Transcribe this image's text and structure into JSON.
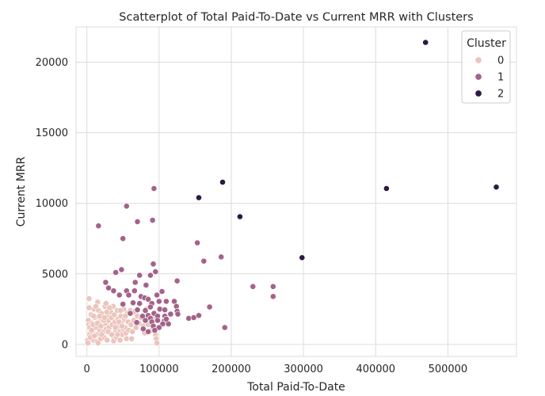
{
  "chart_data": {
    "type": "scatter",
    "title": "Scatterplot of Total Paid-To-Date vs Current MRR with Clusters",
    "xlabel": "Total Paid-To-Date",
    "ylabel": "Current MRR",
    "xlim": [
      -15000,
      595000
    ],
    "ylim": [
      -850,
      22500
    ],
    "xticks": [
      0,
      100000,
      200000,
      300000,
      400000,
      500000
    ],
    "xtick_labels": [
      "0",
      "100000",
      "200000",
      "300000",
      "400000",
      "500000"
    ],
    "yticks": [
      0,
      5000,
      10000,
      15000,
      20000
    ],
    "ytick_labels": [
      "0",
      "5000",
      "10000",
      "15000",
      "20000"
    ],
    "grid": true,
    "legend": {
      "title": "Cluster",
      "position": "top-right",
      "entries": [
        "0",
        "1",
        "2"
      ]
    },
    "colors": {
      "0": "#ecc4bc",
      "1": "#a4628a",
      "2": "#2c1a40"
    },
    "series": [
      {
        "name": "0",
        "points": [
          [
            2000,
            1700
          ],
          [
            3000,
            3250
          ],
          [
            2500,
            1400
          ],
          [
            1000,
            300
          ],
          [
            1500,
            100
          ],
          [
            3500,
            700
          ],
          [
            4000,
            1200
          ],
          [
            6000,
            2100
          ],
          [
            7000,
            1500
          ],
          [
            8000,
            800
          ],
          [
            9000,
            300
          ],
          [
            5000,
            500
          ],
          [
            10000,
            2500
          ],
          [
            11000,
            1900
          ],
          [
            12000,
            1200
          ],
          [
            13000,
            700
          ],
          [
            14000,
            200
          ],
          [
            15000,
            3000
          ],
          [
            16000,
            2400
          ],
          [
            17000,
            1600
          ],
          [
            18000,
            1000
          ],
          [
            19000,
            400
          ],
          [
            20000,
            2200
          ],
          [
            21000,
            1800
          ],
          [
            22000,
            1300
          ],
          [
            23000,
            900
          ],
          [
            24000,
            500
          ],
          [
            25000,
            2700
          ],
          [
            26000,
            1500
          ],
          [
            27000,
            1100
          ],
          [
            28000,
            300
          ],
          [
            29000,
            2000
          ],
          [
            30000,
            1700
          ],
          [
            31000,
            1200
          ],
          [
            32000,
            800
          ],
          [
            33000,
            2300
          ],
          [
            34000,
            1900
          ],
          [
            35000,
            1400
          ],
          [
            36000,
            600
          ],
          [
            37000,
            250
          ],
          [
            38000,
            2100
          ],
          [
            39000,
            1600
          ],
          [
            40000,
            1000
          ],
          [
            41000,
            500
          ],
          [
            42000,
            2400
          ],
          [
            43000,
            1800
          ],
          [
            44000,
            1300
          ],
          [
            45000,
            900
          ],
          [
            46000,
            300
          ],
          [
            47000,
            2000
          ],
          [
            48000,
            1500
          ],
          [
            49000,
            700
          ],
          [
            50000,
            1100
          ],
          [
            51000,
            2500
          ],
          [
            52000,
            1800
          ],
          [
            53000,
            1200
          ],
          [
            54000,
            800
          ],
          [
            55000,
            400
          ],
          [
            56000,
            2200
          ],
          [
            57000,
            1600
          ],
          [
            58000,
            1000
          ],
          [
            60000,
            2400
          ],
          [
            61000,
            1400
          ],
          [
            63000,
            900
          ],
          [
            65000,
            1700
          ],
          [
            66000,
            2300
          ],
          [
            68000,
            1200
          ],
          [
            70000,
            2000
          ],
          [
            72000,
            1500
          ],
          [
            8500,
            1400
          ],
          [
            9500,
            2000
          ],
          [
            12500,
            2700
          ],
          [
            14500,
            1500
          ],
          [
            17500,
            2000
          ],
          [
            19500,
            1300
          ],
          [
            23500,
            1700
          ],
          [
            27500,
            2300
          ],
          [
            29500,
            900
          ],
          [
            34500,
            700
          ],
          [
            36500,
            2700
          ],
          [
            39500,
            1200
          ],
          [
            44500,
            1600
          ],
          [
            46500,
            2400
          ],
          [
            53500,
            2000
          ],
          [
            62000,
            400
          ],
          [
            75000,
            1900
          ],
          [
            78000,
            1300
          ],
          [
            80000,
            800
          ],
          [
            82000,
            2500
          ],
          [
            85000,
            1400
          ],
          [
            90000,
            1000
          ],
          [
            92000,
            1900
          ],
          [
            95000,
            700
          ],
          [
            96000,
            400
          ],
          [
            97000,
            100
          ],
          [
            26500,
            2900
          ],
          [
            31500,
            2600
          ],
          [
            3000,
            2600
          ],
          [
            6500,
            1000
          ],
          [
            10500,
            600
          ],
          [
            15500,
            100
          ],
          [
            20500,
            700
          ],
          [
            24500,
            1900
          ],
          [
            42500,
            700
          ],
          [
            48500,
            1300
          ]
        ]
      },
      {
        "name": "1",
        "points": [
          [
            16000,
            8400
          ],
          [
            93000,
            11050
          ],
          [
            55000,
            9800
          ],
          [
            70000,
            8700
          ],
          [
            91000,
            8800
          ],
          [
            50000,
            7500
          ],
          [
            153000,
            7200
          ],
          [
            162000,
            5900
          ],
          [
            186000,
            6200
          ],
          [
            92000,
            5700
          ],
          [
            48000,
            5300
          ],
          [
            40000,
            5100
          ],
          [
            95000,
            5150
          ],
          [
            88000,
            4900
          ],
          [
            73000,
            4900
          ],
          [
            125000,
            4500
          ],
          [
            67000,
            4400
          ],
          [
            26000,
            4400
          ],
          [
            82000,
            4200
          ],
          [
            30000,
            4000
          ],
          [
            230000,
            4100
          ],
          [
            258000,
            4100
          ],
          [
            258000,
            3400
          ],
          [
            37000,
            3800
          ],
          [
            55000,
            3800
          ],
          [
            66000,
            3800
          ],
          [
            104000,
            3750
          ],
          [
            45000,
            3500
          ],
          [
            58000,
            3500
          ],
          [
            75000,
            3400
          ],
          [
            97000,
            3500
          ],
          [
            80000,
            3300
          ],
          [
            85000,
            3200
          ],
          [
            100000,
            3050
          ],
          [
            110000,
            3050
          ],
          [
            121000,
            3050
          ],
          [
            64000,
            2950
          ],
          [
            73000,
            2900
          ],
          [
            50000,
            2850
          ],
          [
            90000,
            2900
          ],
          [
            124000,
            2700
          ],
          [
            170000,
            2650
          ],
          [
            88000,
            2650
          ],
          [
            101000,
            2500
          ],
          [
            108000,
            2450
          ],
          [
            125000,
            2350
          ],
          [
            70000,
            2450
          ],
          [
            81000,
            2400
          ],
          [
            93000,
            2200
          ],
          [
            60000,
            2200
          ],
          [
            116000,
            2150
          ],
          [
            126000,
            2150
          ],
          [
            85000,
            2050
          ],
          [
            98000,
            2000
          ],
          [
            108000,
            2000
          ],
          [
            77000,
            2000
          ],
          [
            141000,
            1850
          ],
          [
            148000,
            1900
          ],
          [
            155000,
            2050
          ],
          [
            88000,
            1850
          ],
          [
            98000,
            1700
          ],
          [
            107000,
            1650
          ],
          [
            81000,
            1700
          ],
          [
            90000,
            1600
          ],
          [
            105000,
            1450
          ],
          [
            113000,
            1450
          ],
          [
            69000,
            1550
          ],
          [
            92000,
            1300
          ],
          [
            100000,
            1200
          ],
          [
            191000,
            1200
          ],
          [
            78000,
            1100
          ],
          [
            85000,
            900
          ],
          [
            110000,
            1800
          ],
          [
            94000,
            1000
          ]
        ]
      },
      {
        "name": "2",
        "points": [
          [
            469000,
            21400
          ],
          [
            188000,
            11500
          ],
          [
            155000,
            10400
          ],
          [
            415000,
            11050
          ],
          [
            567000,
            11150
          ],
          [
            212000,
            9050
          ],
          [
            298000,
            6150
          ]
        ]
      }
    ]
  }
}
